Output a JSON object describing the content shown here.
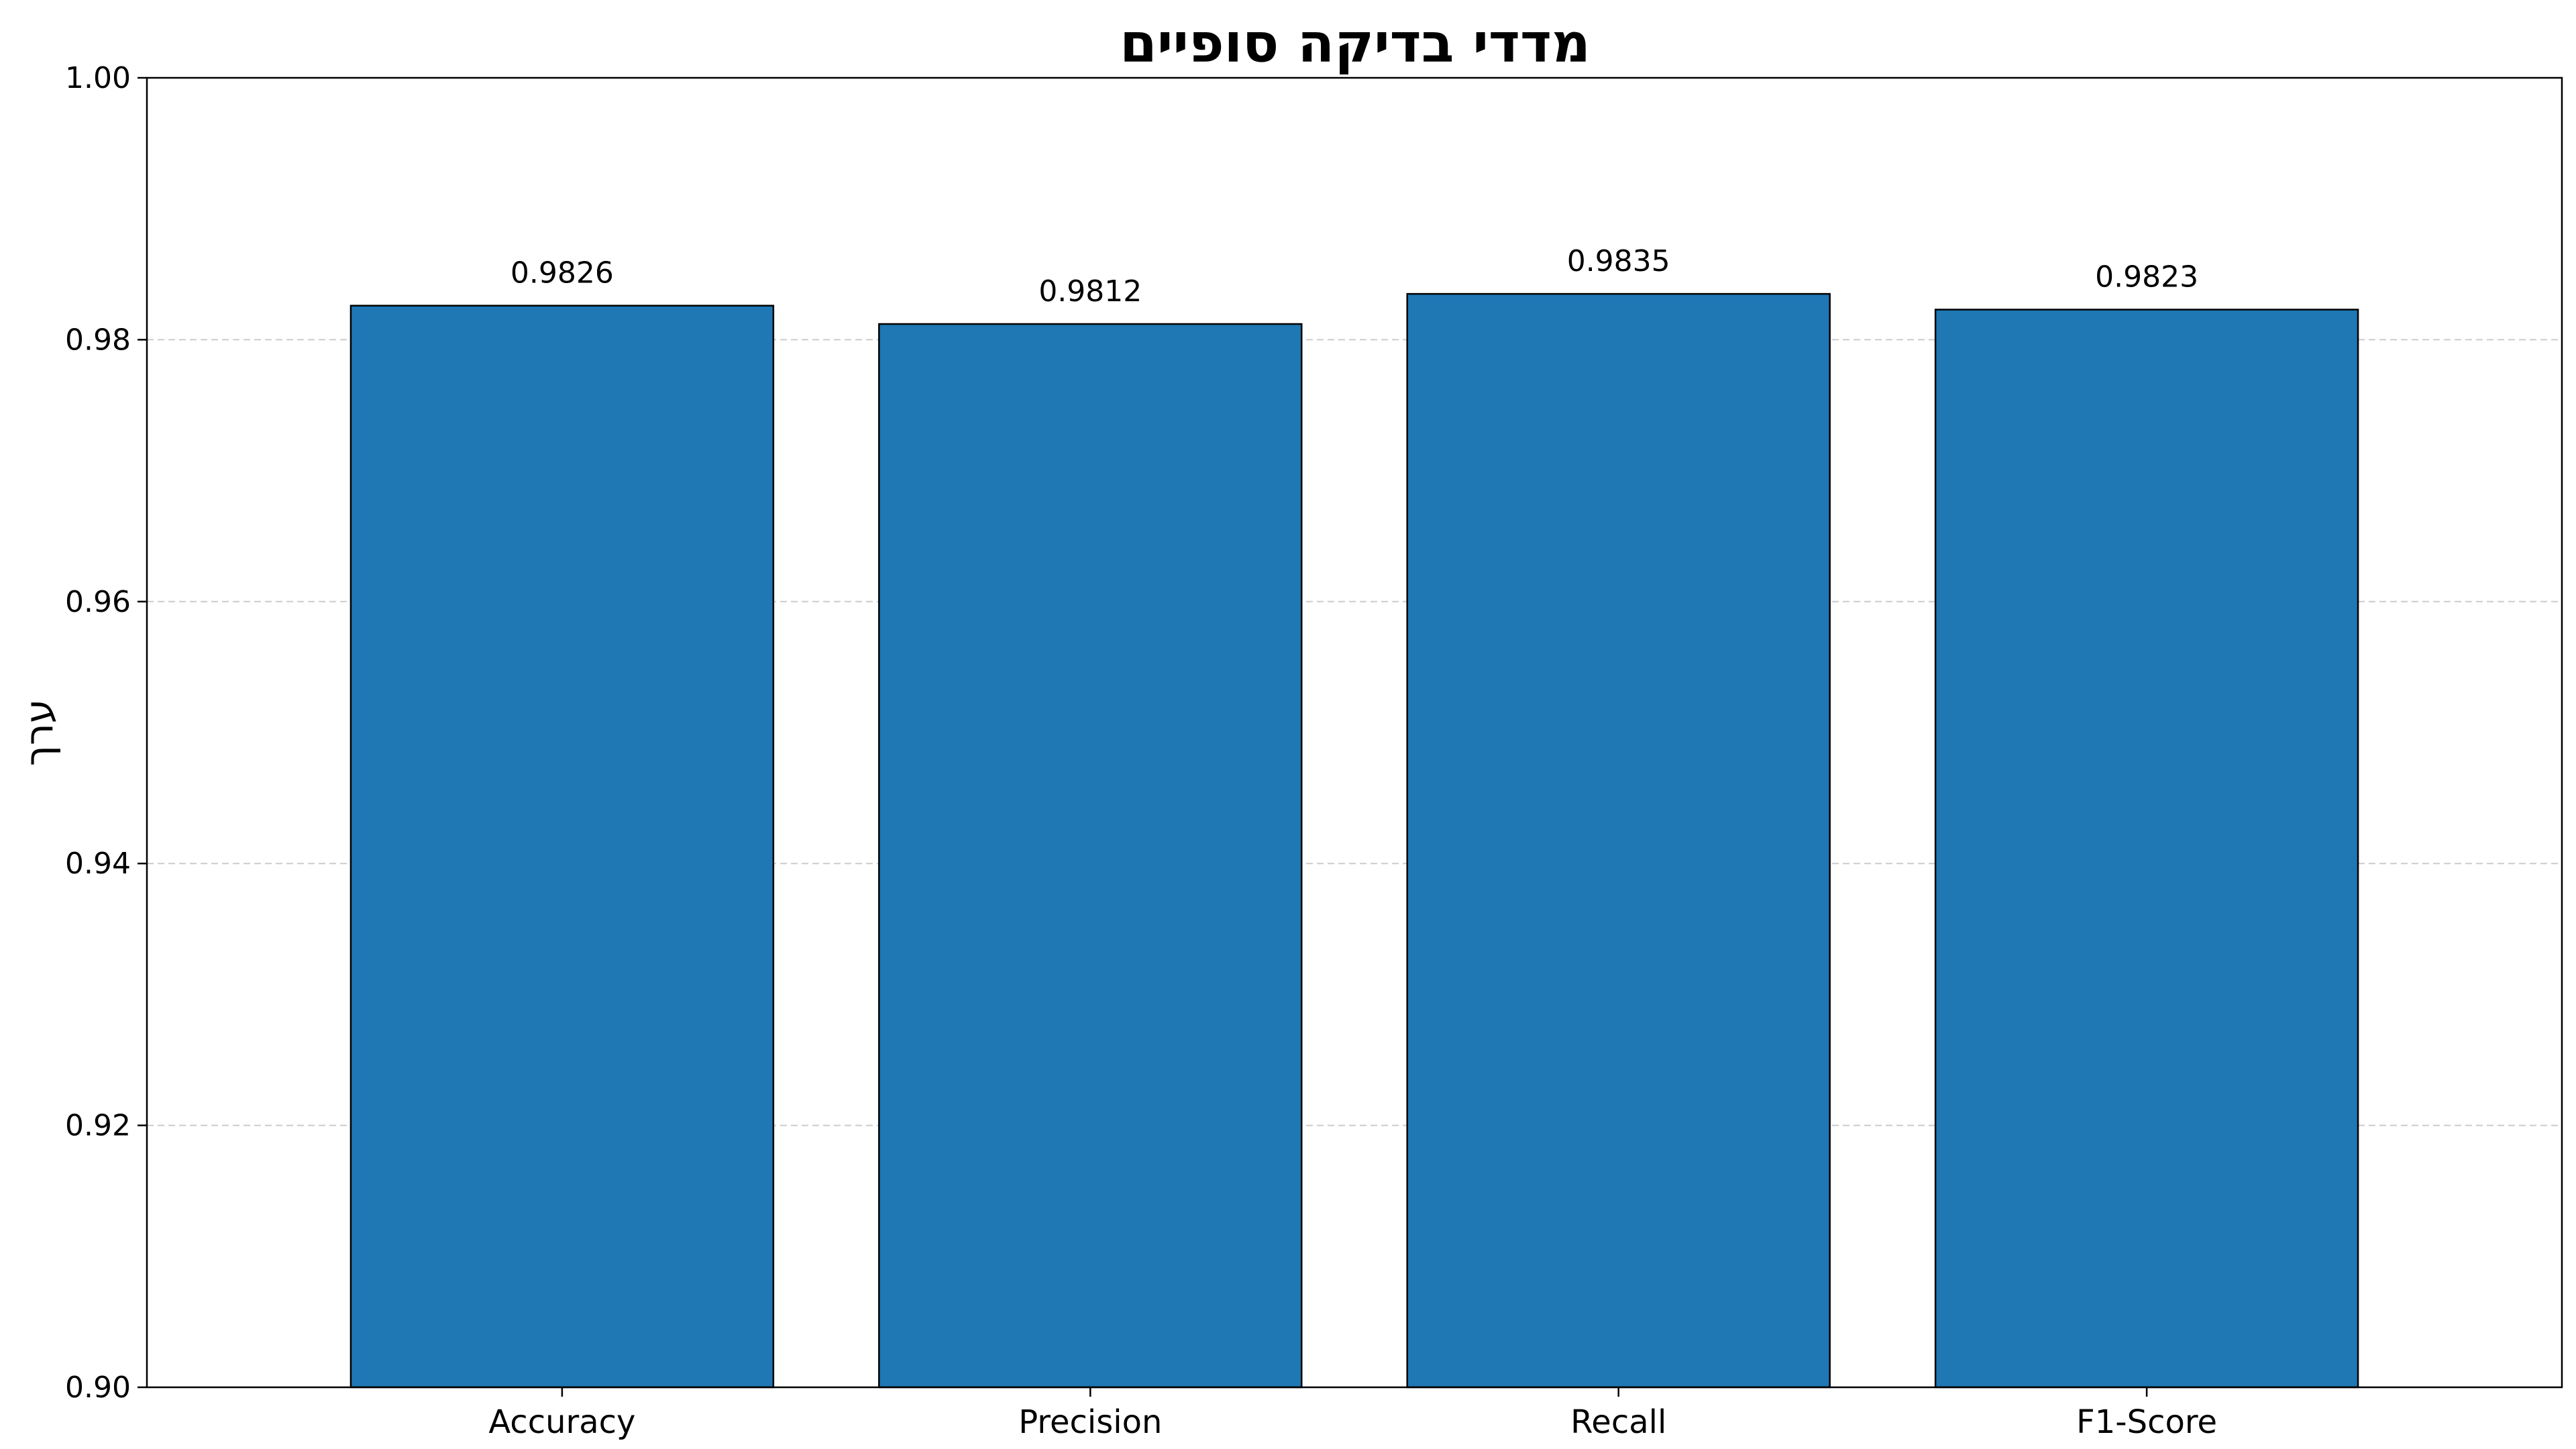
{
  "chart_data": {
    "type": "bar",
    "title": "מדדי בדיקה סופיים",
    "xlabel": "",
    "ylabel": "ערך",
    "categories": [
      "Accuracy",
      "Precision",
      "Recall",
      "F1-Score"
    ],
    "values": [
      0.9826,
      0.9812,
      0.9835,
      0.9823
    ],
    "data_labels": [
      "0.9826",
      "0.9812",
      "0.9835",
      "0.9823"
    ],
    "ylim": [
      0.9,
      1.0
    ],
    "yticks": [
      0.9,
      0.92,
      0.94,
      0.96,
      0.98,
      1.0
    ],
    "ytick_labels": [
      "0.90",
      "0.92",
      "0.94",
      "0.96",
      "0.98",
      "1.00"
    ],
    "grid": "y-dashed",
    "bar_color": "#1f77b4",
    "bar_edge_color": "#000000"
  }
}
